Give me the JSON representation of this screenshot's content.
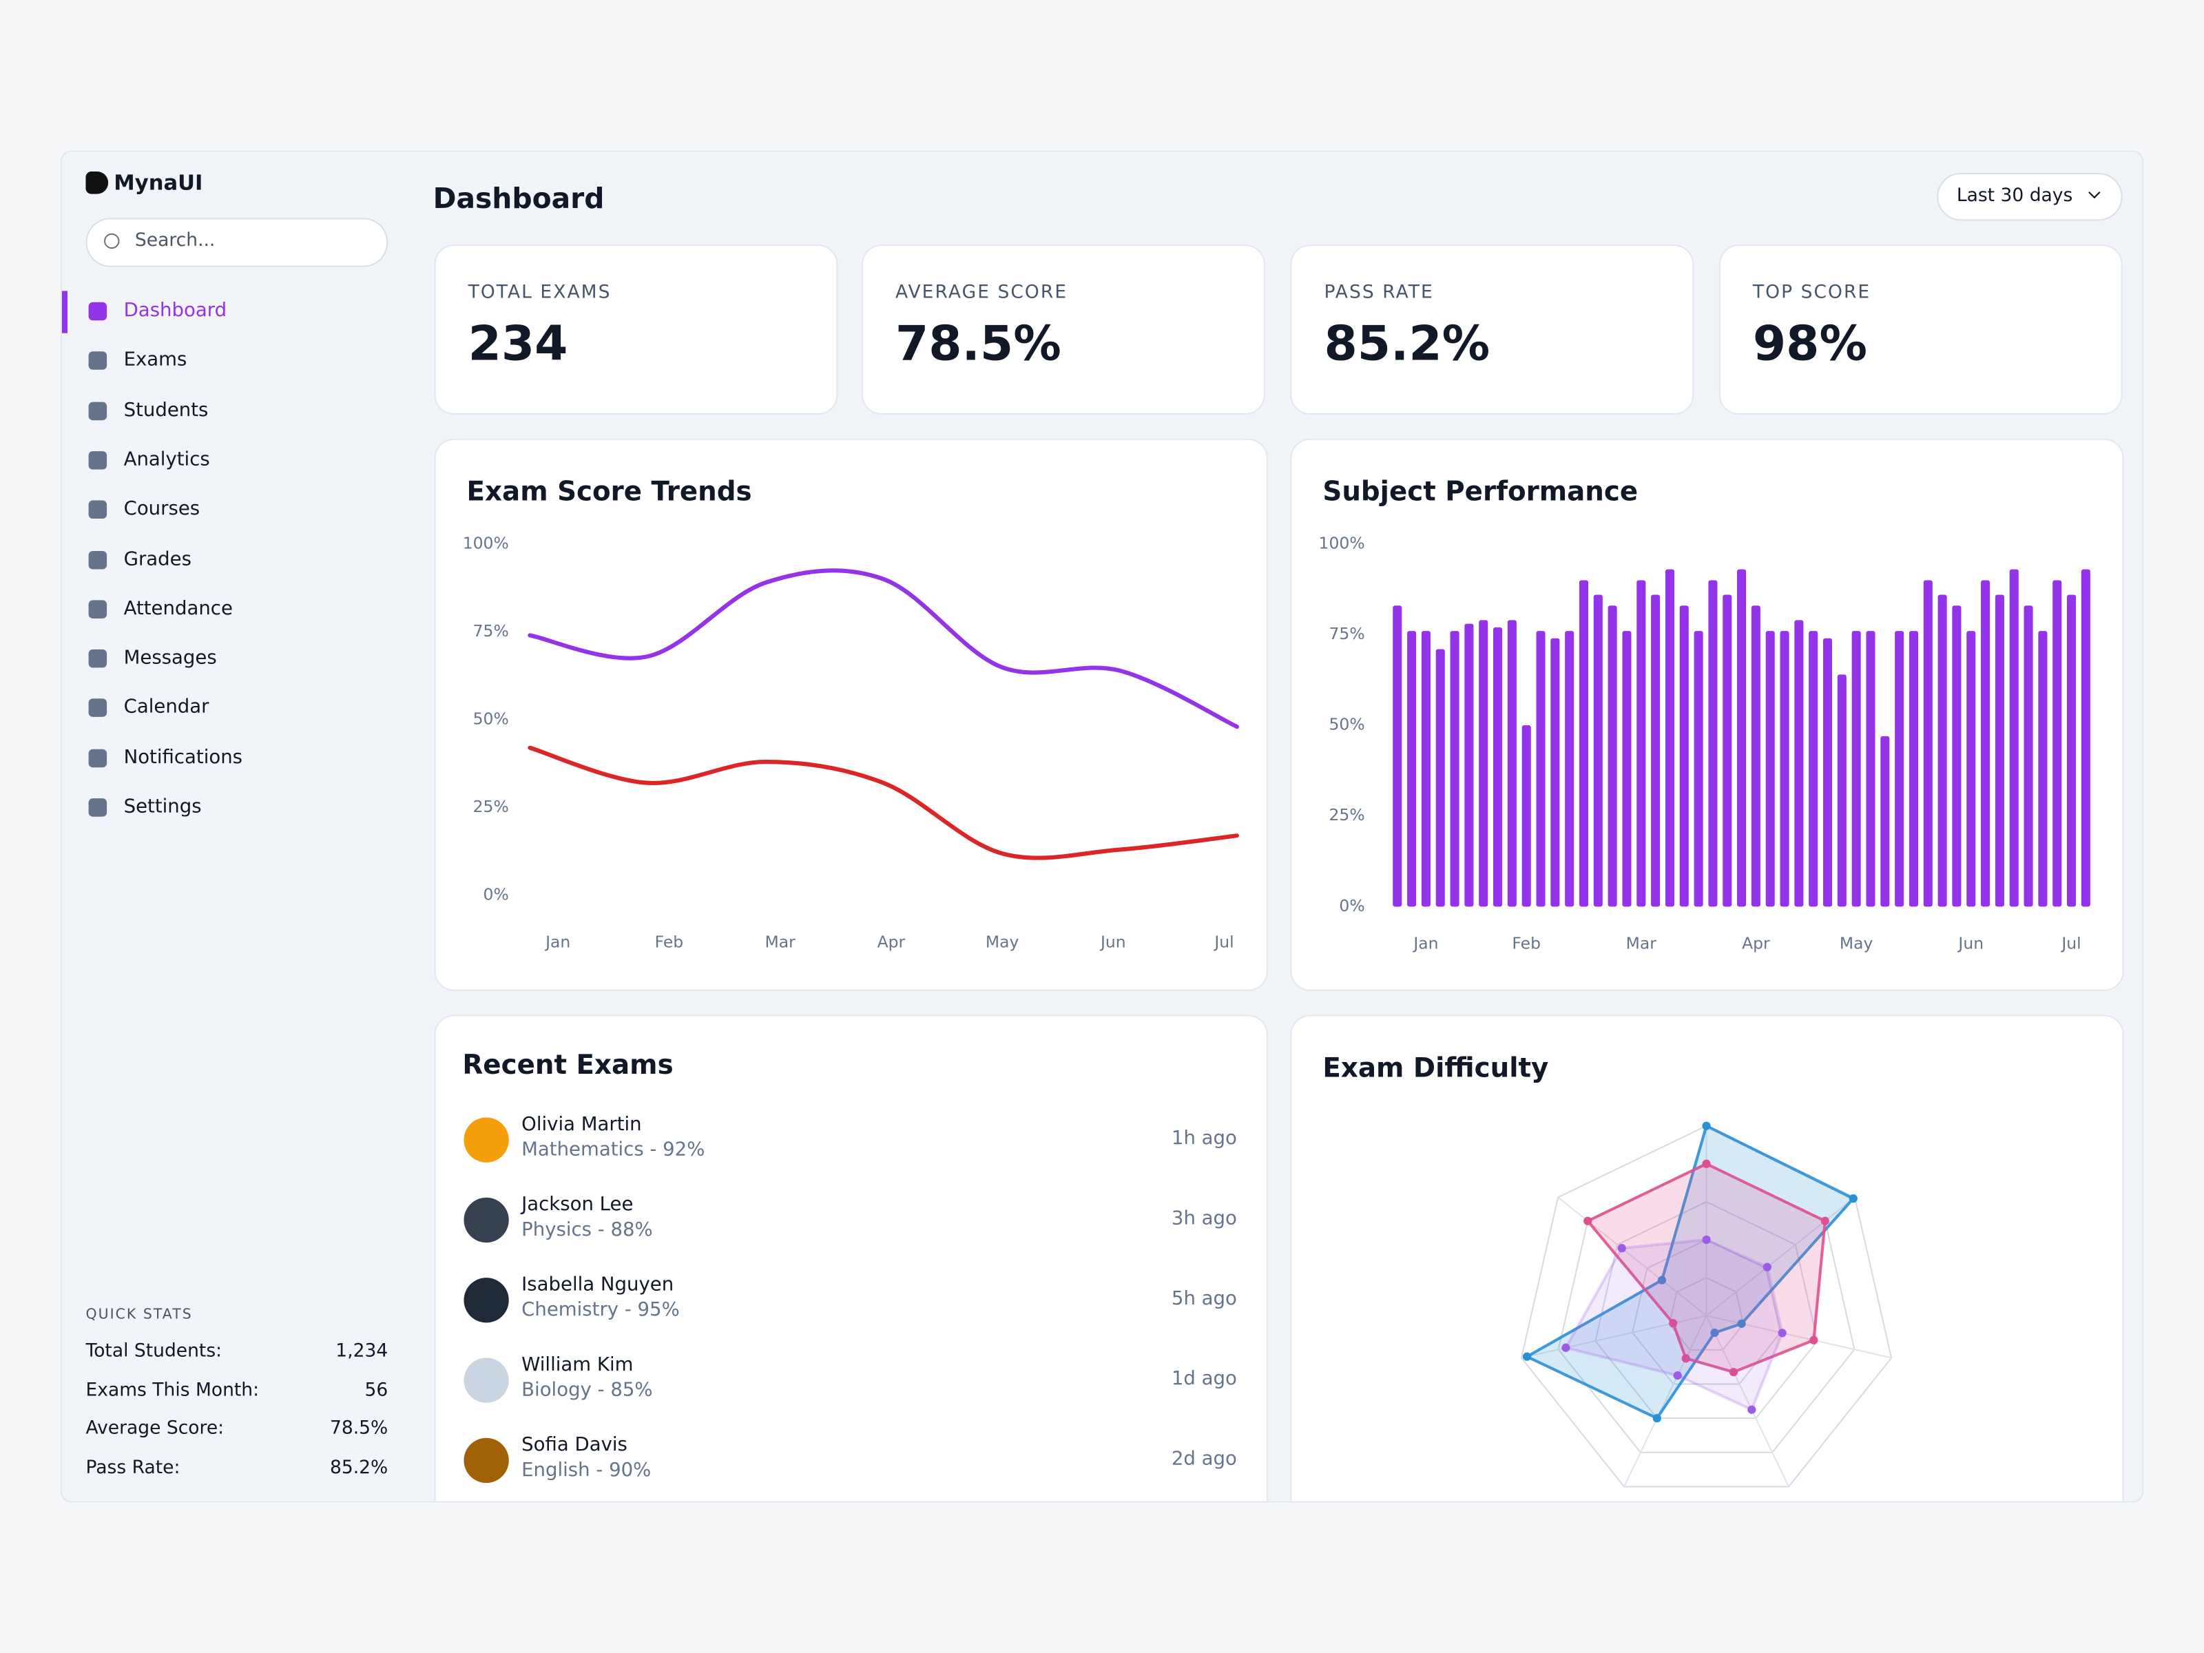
{
  "sidebar": {
    "brand": "MynaUI",
    "search_placeholder": "Search...",
    "active": 0,
    "nav": [
      "Dashboard",
      "Exams",
      "Students",
      "Analytics",
      "Courses",
      "Grades",
      "Attendance",
      "Messages",
      "Calendar",
      "Notifications",
      "Settings"
    ],
    "quick_stats": {
      "title": "QUICK STATS",
      "rows": [
        [
          "Total Students:",
          "1,234"
        ],
        [
          "Exams This Month:",
          "56"
        ],
        [
          "Average Score:",
          "78.5%"
        ],
        [
          "Pass Rate:",
          "85.2%"
        ]
      ]
    }
  },
  "header": {
    "title": "Dashboard",
    "range": "Last 30 days"
  },
  "stats": [
    {
      "label": "TOTAL EXAMS",
      "value": "234"
    },
    {
      "label": "AVERAGE SCORE",
      "value": "78.5%"
    },
    {
      "label": "PASS RATE",
      "value": "85.2%"
    },
    {
      "label": "TOP SCORE",
      "value": "98%"
    }
  ],
  "recent_exams": {
    "title": "Recent Exams",
    "items": [
      {
        "name": "Olivia Martin",
        "detail": "Mathematics - 92%",
        "time": "1h ago"
      },
      {
        "name": "Jackson Lee",
        "detail": "Physics - 88%",
        "time": "3h ago"
      },
      {
        "name": "Isabella Nguyen",
        "detail": "Chemistry - 95%",
        "time": "5h ago"
      },
      {
        "name": "William Kim",
        "detail": "Biology - 85%",
        "time": "1d ago"
      },
      {
        "name": "Sofia Davis",
        "detail": "English - 90%",
        "time": "2d ago"
      }
    ]
  },
  "chart_data": [
    {
      "type": "line",
      "title": "Exam Score Trends",
      "categories": [
        "Jan",
        "Feb",
        "Mar",
        "Apr",
        "May",
        "Jun",
        "Jul"
      ],
      "series": [
        {
          "color": "#9333ea",
          "values": [
            74,
            68,
            89,
            90,
            65,
            64,
            48
          ]
        },
        {
          "color": "#dc2626",
          "values": [
            42,
            32,
            38,
            32,
            12,
            13,
            17
          ]
        }
      ],
      "ylim": [
        0,
        100
      ],
      "yticks": [
        {
          "value": 0,
          "label": "0%"
        },
        {
          "value": 25,
          "label": "25%"
        },
        {
          "value": 50,
          "label": "50%"
        },
        {
          "value": 75,
          "label": "75%"
        },
        {
          "value": 100,
          "label": "100%"
        }
      ]
    },
    {
      "type": "bar",
      "title": "Subject Performance",
      "categories": [
        null,
        null,
        "Jan",
        null,
        null,
        null,
        null,
        null,
        null,
        "Feb",
        null,
        null,
        null,
        null,
        null,
        null,
        null,
        "Mar",
        null,
        null,
        null,
        null,
        null,
        null,
        null,
        "Apr",
        null,
        null,
        null,
        null,
        null,
        null,
        "May",
        null,
        null,
        null,
        null,
        null,
        null,
        null,
        "Jun",
        null,
        null,
        null,
        null,
        null,
        null,
        "Jul",
        null
      ],
      "values": [
        83,
        76,
        76,
        71,
        76,
        78,
        79,
        77,
        79,
        50,
        76,
        74,
        76,
        90,
        86,
        83,
        76,
        90,
        86,
        93,
        83,
        76,
        90,
        86,
        93,
        83,
        76,
        76,
        79,
        76,
        74,
        64,
        76,
        76,
        47,
        76,
        76,
        90,
        86,
        83,
        76,
        90,
        86,
        93,
        83,
        76,
        90,
        86,
        93
      ],
      "color": "#9333ea",
      "ylim": [
        0,
        100
      ],
      "yticks": [
        {
          "value": 0,
          "label": "0%"
        },
        {
          "value": 25,
          "label": "25%"
        },
        {
          "value": 50,
          "label": "50%"
        },
        {
          "value": 75,
          "label": "75%"
        },
        {
          "value": 100,
          "label": "100%"
        }
      ]
    },
    {
      "type": "radar",
      "title": "Exam Difficulty",
      "rlim": [
        0,
        100
      ],
      "rticks": [
        20,
        40,
        60,
        80,
        100
      ],
      "series": [
        {
          "color": "#2b8fd6",
          "values": [
            100,
            99,
            19,
            10,
            60,
            97,
            30
          ]
        },
        {
          "color": "#e0508f",
          "values": [
            80,
            80,
            58,
            33,
            25,
            18,
            80
          ]
        },
        {
          "color": "#9b5de5",
          "values": [
            40,
            41,
            41,
            55,
            35,
            76,
            57
          ]
        }
      ]
    }
  ]
}
